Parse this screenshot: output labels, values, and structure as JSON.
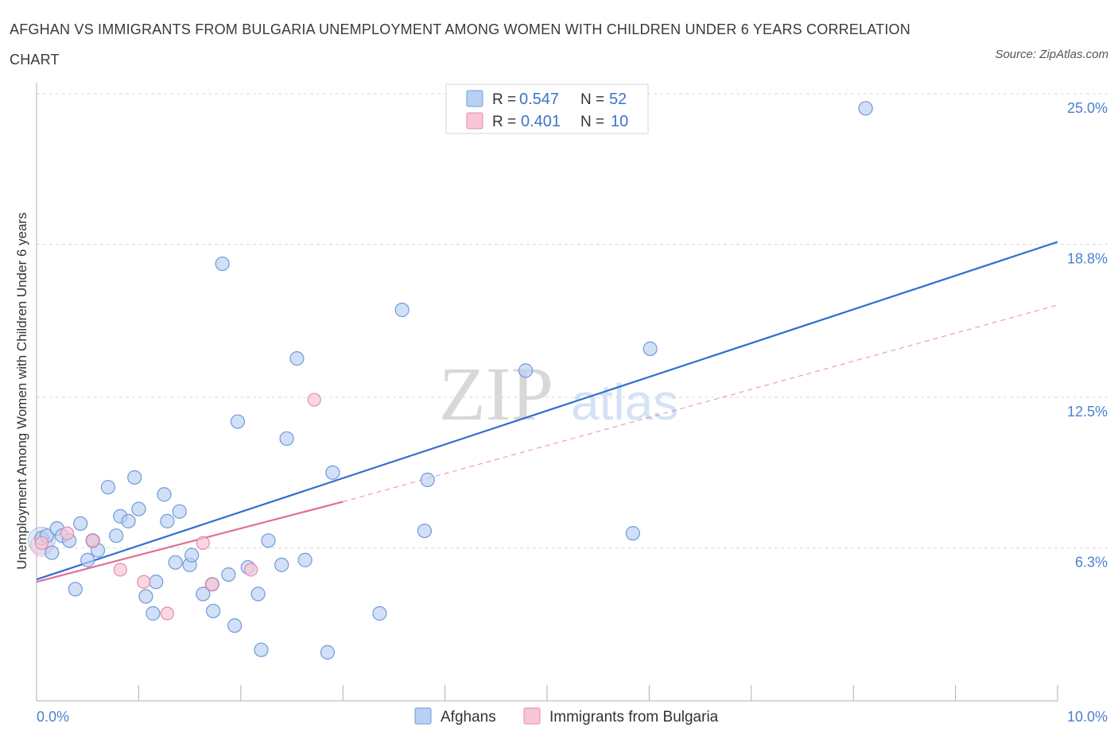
{
  "chart_data": {
    "type": "scatter",
    "title": "AFGHAN VS IMMIGRANTS FROM BULGARIA UNEMPLOYMENT AMONG WOMEN WITH CHILDREN UNDER 6 YEARS CORRELATION CHART",
    "source": "Source: ZipAtlas.com",
    "xlabel": "",
    "ylabel": "Unemployment Among Women with Children Under 6 years",
    "xlim": [
      0,
      10
    ],
    "ylim": [
      0,
      25.0
    ],
    "x_tick_labels": [
      "0.0%",
      "10.0%"
    ],
    "y_ticks": [
      6.3,
      12.5,
      18.8,
      25.0
    ],
    "y_tick_labels": [
      "6.3%",
      "12.5%",
      "18.8%",
      "25.0%"
    ],
    "grid": true,
    "watermark": {
      "zip": "ZIP",
      "atlas": "atlas"
    },
    "legend": {
      "stats": [
        {
          "r_label": "R = ",
          "r_value": "0.547",
          "n_label": "N = ",
          "n_value": "52"
        },
        {
          "r_label": "R = ",
          "r_value": "0.401",
          "n_label": "N = ",
          "n_value": "10"
        }
      ],
      "entries": [
        "Afghans",
        "Immigrants from Bulgaria"
      ]
    },
    "colors": {
      "afghans_fill": "#b8d0f2",
      "afghans_stroke": "#6f9ad8",
      "afghans_line": "#2f6fd0",
      "bulgaria_fill": "#f8c6d6",
      "bulgaria_stroke": "#e68aa8",
      "bulgaria_line": "#e06e96",
      "grid": "#d9d9d9",
      "axis": "#b0b0b0"
    },
    "series": [
      {
        "name": "Afghans",
        "r": 0.547,
        "n": 52,
        "trend": {
          "x": [
            0.0,
            10.0
          ],
          "y": [
            5.0,
            18.9
          ]
        },
        "points": [
          {
            "x": 0.05,
            "y": 6.7
          },
          {
            "x": 0.1,
            "y": 6.8
          },
          {
            "x": 0.15,
            "y": 6.1
          },
          {
            "x": 0.2,
            "y": 7.1
          },
          {
            "x": 0.25,
            "y": 6.8
          },
          {
            "x": 0.32,
            "y": 6.6
          },
          {
            "x": 0.38,
            "y": 4.6
          },
          {
            "x": 0.43,
            "y": 7.3
          },
          {
            "x": 0.5,
            "y": 5.8
          },
          {
            "x": 0.55,
            "y": 6.6
          },
          {
            "x": 0.6,
            "y": 6.2
          },
          {
            "x": 0.7,
            "y": 8.8
          },
          {
            "x": 0.78,
            "y": 6.8
          },
          {
            "x": 0.82,
            "y": 7.6
          },
          {
            "x": 0.9,
            "y": 7.4
          },
          {
            "x": 0.96,
            "y": 9.2
          },
          {
            "x": 1.0,
            "y": 7.9
          },
          {
            "x": 1.07,
            "y": 4.3
          },
          {
            "x": 1.14,
            "y": 3.6
          },
          {
            "x": 1.17,
            "y": 4.9
          },
          {
            "x": 1.25,
            "y": 8.5
          },
          {
            "x": 1.28,
            "y": 7.4
          },
          {
            "x": 1.36,
            "y": 5.7
          },
          {
            "x": 1.4,
            "y": 7.8
          },
          {
            "x": 1.5,
            "y": 5.6
          },
          {
            "x": 1.52,
            "y": 6.0
          },
          {
            "x": 1.63,
            "y": 4.4
          },
          {
            "x": 1.73,
            "y": 3.7
          },
          {
            "x": 1.82,
            "y": 18.0
          },
          {
            "x": 1.88,
            "y": 5.2
          },
          {
            "x": 1.94,
            "y": 3.1
          },
          {
            "x": 1.97,
            "y": 11.5
          },
          {
            "x": 2.07,
            "y": 5.5
          },
          {
            "x": 2.17,
            "y": 4.4
          },
          {
            "x": 2.2,
            "y": 2.1
          },
          {
            "x": 2.27,
            "y": 6.6
          },
          {
            "x": 2.4,
            "y": 5.6
          },
          {
            "x": 2.45,
            "y": 10.8
          },
          {
            "x": 2.55,
            "y": 14.1
          },
          {
            "x": 2.63,
            "y": 5.8
          },
          {
            "x": 2.85,
            "y": 2.0
          },
          {
            "x": 2.9,
            "y": 9.4
          },
          {
            "x": 3.36,
            "y": 3.6
          },
          {
            "x": 3.58,
            "y": 16.1
          },
          {
            "x": 3.8,
            "y": 7.0
          },
          {
            "x": 3.83,
            "y": 9.1
          },
          {
            "x": 4.79,
            "y": 13.6
          },
          {
            "x": 5.84,
            "y": 6.9
          },
          {
            "x": 6.01,
            "y": 14.5
          },
          {
            "x": 8.12,
            "y": 24.4
          },
          {
            "x": 1.72,
            "y": 4.8
          },
          {
            "x": 0.55,
            "y": 6.6
          }
        ]
      },
      {
        "name": "Immigrants from Bulgaria",
        "r": 0.401,
        "n": 10,
        "trend": {
          "x": [
            0.0,
            3.0
          ],
          "y": [
            4.9,
            8.2
          ]
        },
        "trend_dashed": {
          "x": [
            3.0,
            10.0
          ],
          "y": [
            8.2,
            16.3
          ]
        },
        "points": [
          {
            "x": 0.05,
            "y": 6.5
          },
          {
            "x": 0.3,
            "y": 6.9
          },
          {
            "x": 0.55,
            "y": 6.6
          },
          {
            "x": 0.82,
            "y": 5.4
          },
          {
            "x": 1.05,
            "y": 4.9
          },
          {
            "x": 1.28,
            "y": 3.6
          },
          {
            "x": 1.63,
            "y": 6.5
          },
          {
            "x": 1.72,
            "y": 4.8
          },
          {
            "x": 2.1,
            "y": 5.4
          },
          {
            "x": 2.72,
            "y": 12.4
          }
        ]
      }
    ]
  }
}
